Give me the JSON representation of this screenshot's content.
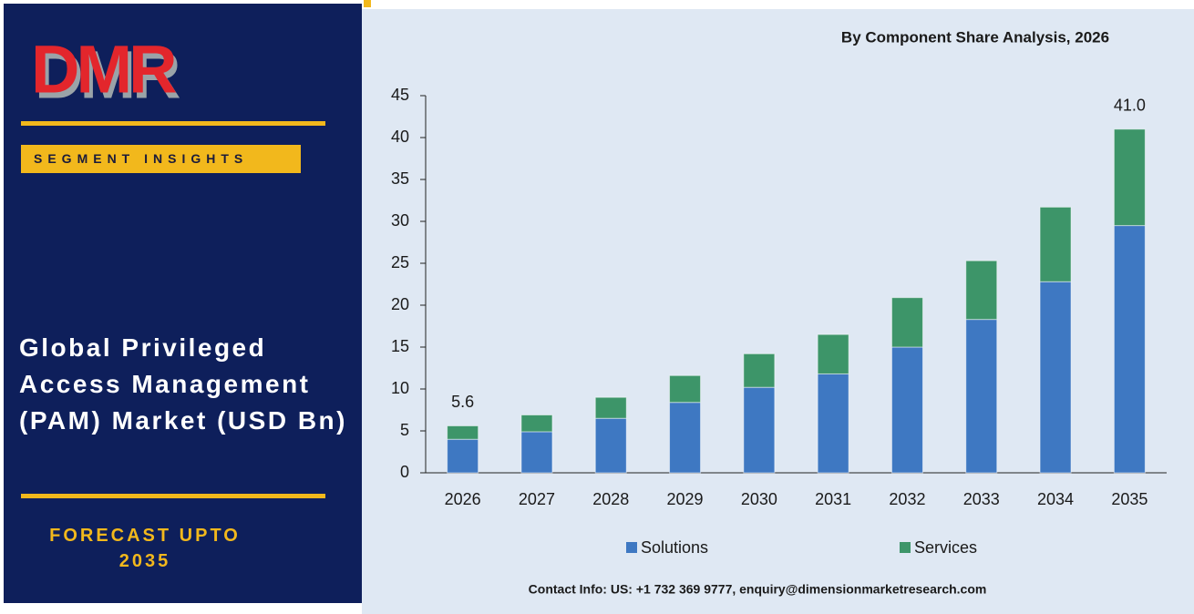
{
  "sidebar": {
    "logo": "DMR",
    "label": "SEGMENT INSIGHTS",
    "title": "Global Privileged Access Management (PAM) Market (USD Bn)",
    "forecast": "FORECAST UPTO 2035"
  },
  "footer": {
    "contact": "Contact Info: US: +1 732 369 9777, enquiry@dimensionmarketresearch.com"
  },
  "chart_data": {
    "type": "stacked_bar",
    "title": "By Component Share Analysis, 2026",
    "categories": [
      "2026",
      "2027",
      "2028",
      "2029",
      "2030",
      "2031",
      "2032",
      "2033",
      "2034",
      "2035"
    ],
    "series": [
      {
        "name": "Solutions",
        "color": "#3e78c2",
        "values": [
          4.0,
          4.9,
          6.5,
          8.4,
          10.2,
          11.8,
          15.0,
          18.3,
          22.8,
          29.5
        ]
      },
      {
        "name": "Services",
        "color": "#3d9569",
        "values": [
          1.6,
          2.0,
          2.5,
          3.2,
          4.0,
          4.7,
          5.9,
          7.0,
          8.9,
          11.5
        ]
      }
    ],
    "total_labels": [
      {
        "category": "2026",
        "value": 5.6,
        "label": "5.6"
      },
      {
        "category": "2035",
        "value": 41,
        "label": "41.0"
      }
    ],
    "ylim": [
      0,
      45
    ],
    "yticks": [
      0,
      5,
      10,
      15,
      20,
      25,
      30,
      35,
      40,
      45
    ],
    "grid": false,
    "legend": "bottom"
  }
}
